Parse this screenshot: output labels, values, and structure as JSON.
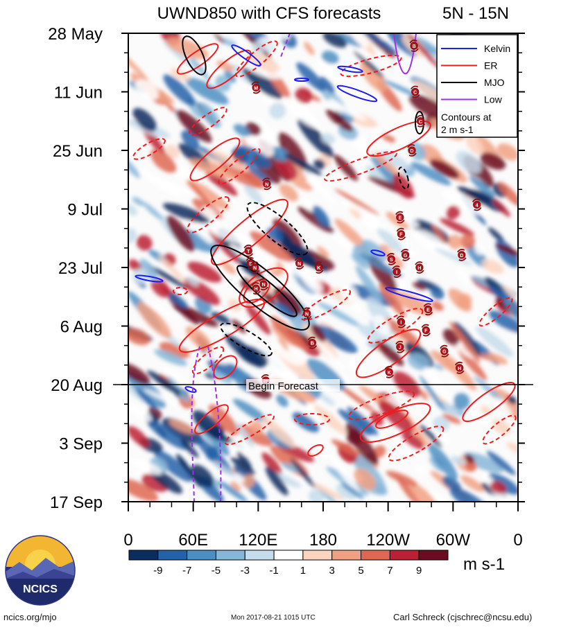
{
  "chart_data": {
    "type": "heatmap",
    "title": "UWND850 with CFS forecasts",
    "region": "5N - 15N",
    "y_ticks": [
      "28 May",
      "11 Jun",
      "25 Jun",
      "9 Jul",
      "23 Jul",
      "6 Aug",
      "20 Aug",
      "3 Sep",
      "17 Sep"
    ],
    "x_ticks": [
      "0",
      "60E",
      "120E",
      "180",
      "120W",
      "60W",
      "0"
    ],
    "x_range_deg_east": [
      0,
      360
    ],
    "y_range": [
      "28 May",
      "17 Sep"
    ],
    "begin_forecast_label": "Begin Forecast",
    "begin_forecast_date": "20 Aug",
    "colorbar": {
      "levels": [
        "-9",
        "-7",
        "-5",
        "-3",
        "-1",
        "1",
        "3",
        "5",
        "7",
        "9"
      ],
      "level_values": [
        -9,
        -7,
        -5,
        -3,
        -1,
        1,
        3,
        5,
        7,
        9
      ],
      "colors": [
        "#0b2c5e",
        "#2462a8",
        "#4d8ec2",
        "#86b6d8",
        "#c6dceb",
        "#ffffff",
        "#fbd4c0",
        "#f1a183",
        "#de6752",
        "#bb2134",
        "#6b0d22"
      ],
      "units": "m s-1"
    },
    "legend": {
      "entries": [
        {
          "name": "Kelvin",
          "color": "#1c1cf0"
        },
        {
          "name": "ER",
          "color": "#ee1c1c"
        },
        {
          "name": "MJO",
          "color": "#000000"
        },
        {
          "name": "Low",
          "color": "#a030e0"
        }
      ],
      "note_line1": "Contours at",
      "note_line2": "2 m s-1",
      "placement": "top-right"
    },
    "tc_markers": [
      {
        "letter": "B",
        "lon": 264,
        "date": "31 May"
      },
      {
        "letter": "C",
        "lon": 265,
        "date": "11 Jun"
      },
      {
        "letter": "C",
        "lon": 270,
        "date": "18 Jun"
      },
      {
        "letter": "D",
        "lon": 262,
        "date": "25 Jun"
      },
      {
        "letter": "M",
        "lon": 118,
        "date": "10 Jun"
      },
      {
        "letter": "N",
        "lon": 128,
        "date": "3 Jul"
      },
      {
        "letter": "4",
        "lon": 322,
        "date": "8 Jul"
      },
      {
        "letter": "E",
        "lon": 251,
        "date": "11 Jul"
      },
      {
        "letter": "F",
        "lon": 252,
        "date": "15 Jul"
      },
      {
        "letter": "T",
        "lon": 111,
        "date": "19 Jul"
      },
      {
        "letter": "S",
        "lon": 113,
        "date": "22 Jul"
      },
      {
        "letter": "N",
        "lon": 117,
        "date": "23 Jul"
      },
      {
        "letter": "N",
        "lon": 158,
        "date": "22 Jul"
      },
      {
        "letter": "K",
        "lon": 176,
        "date": "23 Jul"
      },
      {
        "letter": "G",
        "lon": 256,
        "date": "20 Jul"
      },
      {
        "letter": "S",
        "lon": 243,
        "date": "21 Jul"
      },
      {
        "letter": "H",
        "lon": 269,
        "date": "23 Jul"
      },
      {
        "letter": "D",
        "lon": 308,
        "date": "20 Jul"
      },
      {
        "letter": "I",
        "lon": 248,
        "date": "24 Jul"
      },
      {
        "letter": "N",
        "lon": 125,
        "date": "27 Jul"
      },
      {
        "letter": "H",
        "lon": 118,
        "date": "28 Jul"
      },
      {
        "letter": "E",
        "lon": 277,
        "date": "2 Aug"
      },
      {
        "letter": "N",
        "lon": 165,
        "date": "3 Aug"
      },
      {
        "letter": "I",
        "lon": 252,
        "date": "5 Aug"
      },
      {
        "letter": "F",
        "lon": 275,
        "date": "7 Aug"
      },
      {
        "letter": "B",
        "lon": 170,
        "date": "10 Aug"
      },
      {
        "letter": "J",
        "lon": 251,
        "date": "11 Aug"
      },
      {
        "letter": "G",
        "lon": 292,
        "date": "12 Aug"
      },
      {
        "letter": "H",
        "lon": 306,
        "date": "16 Aug"
      },
      {
        "letter": "K",
        "lon": 241,
        "date": "17 Aug"
      },
      {
        "letter": "H",
        "lon": 127,
        "date": "19 Aug"
      }
    ]
  },
  "footer": {
    "logo_text": "NCICS",
    "website": "ncics.org/mjo",
    "timestamp": "Mon 2017-08-21 1015 UTC",
    "author": "Carl Schreck (cjschrec@ncsu.edu)"
  }
}
